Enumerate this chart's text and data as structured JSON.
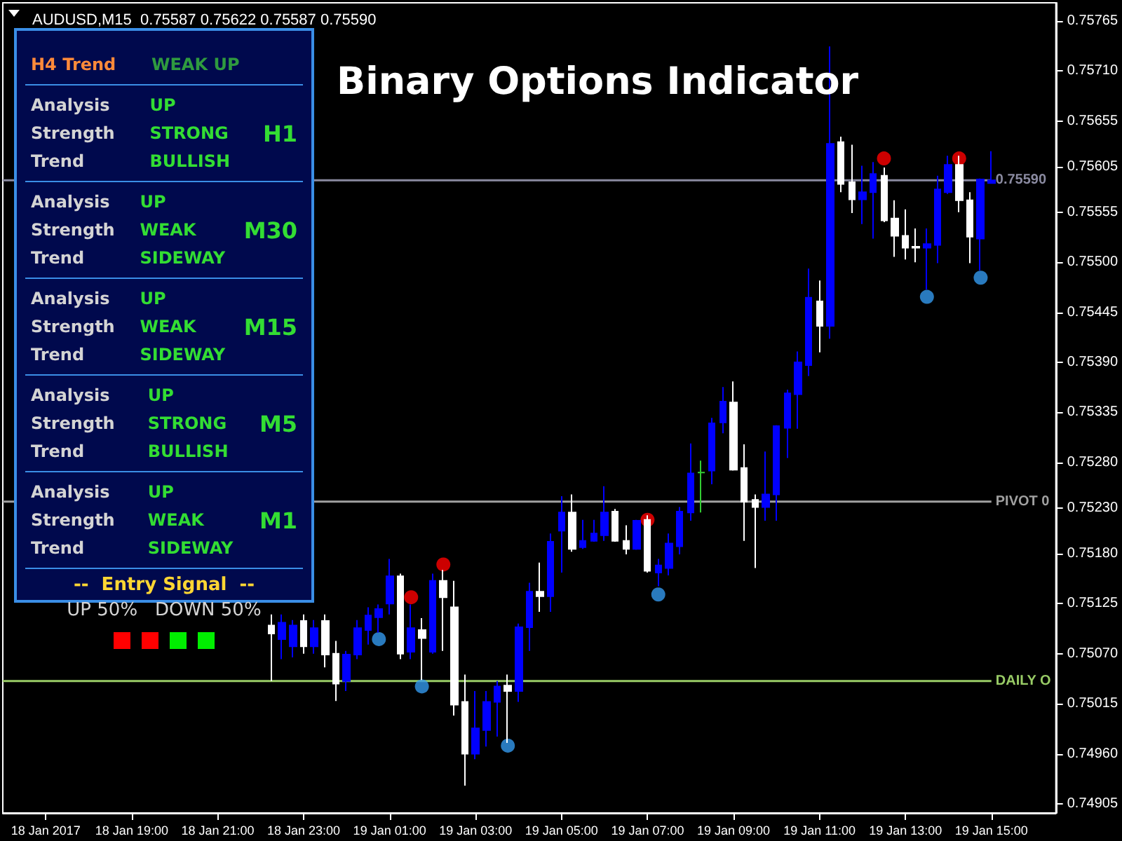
{
  "chart_data": [
    {
      "type": "candlestick",
      "title": "AUDUSD,M15  0.75587 0.75622 0.75587 0.75590",
      "annotations": [
        "Binary Options Indicator"
      ],
      "x": [
        "2017-01-18T22:15",
        "2017-01-18T22:30",
        "2017-01-18T22:45",
        "2017-01-18T23:00",
        "2017-01-18T23:15",
        "2017-01-18T23:30",
        "2017-01-18T23:45",
        "2017-01-19T00:00",
        "2017-01-19T00:15",
        "2017-01-19T00:30",
        "2017-01-19T00:45",
        "2017-01-19T01:00",
        "2017-01-19T01:15",
        "2017-01-19T01:30",
        "2017-01-19T01:45",
        "2017-01-19T02:00",
        "2017-01-19T02:15",
        "2017-01-19T02:30",
        "2017-01-19T02:45",
        "2017-01-19T03:00",
        "2017-01-19T03:15",
        "2017-01-19T03:30",
        "2017-01-19T03:45",
        "2017-01-19T04:00",
        "2017-01-19T04:15",
        "2017-01-19T04:30",
        "2017-01-19T04:45",
        "2017-01-19T05:00",
        "2017-01-19T05:15",
        "2017-01-19T05:30",
        "2017-01-19T05:45",
        "2017-01-19T06:00",
        "2017-01-19T06:15",
        "2017-01-19T06:30",
        "2017-01-19T06:45",
        "2017-01-19T07:00",
        "2017-01-19T07:15",
        "2017-01-19T07:30",
        "2017-01-19T07:45",
        "2017-01-19T08:00",
        "2017-01-19T08:15",
        "2017-01-19T08:30",
        "2017-01-19T08:45",
        "2017-01-19T09:00",
        "2017-01-19T09:15",
        "2017-01-19T09:30",
        "2017-01-19T09:45",
        "2017-01-19T10:00",
        "2017-01-19T10:15",
        "2017-01-19T10:30",
        "2017-01-19T10:45",
        "2017-01-19T11:00",
        "2017-01-19T11:15",
        "2017-01-19T11:30",
        "2017-01-19T11:45",
        "2017-01-19T12:00",
        "2017-01-19T12:15",
        "2017-01-19T12:30",
        "2017-01-19T12:45",
        "2017-01-19T13:00",
        "2017-01-19T13:15",
        "2017-01-19T13:30",
        "2017-01-19T13:45",
        "2017-01-19T14:00",
        "2017-01-19T14:15",
        "2017-01-19T14:30",
        "2017-01-19T14:45",
        "2017-01-19T15:00"
      ],
      "ohlc": [
        [
          0.75101,
          0.75113,
          0.7504,
          0.75092
        ],
        [
          0.75086,
          0.75113,
          0.75064,
          0.75104
        ],
        [
          0.75078,
          0.75107,
          0.75066,
          0.75101
        ],
        [
          0.75106,
          0.75113,
          0.7507,
          0.75078
        ],
        [
          0.75078,
          0.75107,
          0.7507,
          0.75098
        ],
        [
          0.75106,
          0.75113,
          0.75055,
          0.75069
        ],
        [
          0.7507,
          0.75084,
          0.75018,
          0.75037
        ],
        [
          0.7504,
          0.75073,
          0.75029,
          0.75069
        ],
        [
          0.75069,
          0.75107,
          0.75064,
          0.75098
        ],
        [
          0.75096,
          0.75121,
          0.7508,
          0.75112
        ],
        [
          0.7511,
          0.75124,
          0.75093,
          0.75119
        ],
        [
          0.75125,
          0.75174,
          0.75113,
          0.75155
        ],
        [
          0.75155,
          0.75158,
          0.75064,
          0.7507
        ],
        [
          0.75072,
          0.75124,
          0.75064,
          0.75098
        ],
        [
          0.75096,
          0.75109,
          0.75041,
          0.75087
        ],
        [
          0.75072,
          0.75158,
          0.7507,
          0.7515
        ],
        [
          0.7515,
          0.75162,
          0.75073,
          0.75132
        ],
        [
          0.75121,
          0.7515,
          0.75002,
          0.75014
        ],
        [
          0.75017,
          0.75047,
          0.74925,
          0.7496
        ],
        [
          0.7496,
          0.75029,
          0.74954,
          0.74988
        ],
        [
          0.74986,
          0.75029,
          0.74968,
          0.75017
        ],
        [
          0.75017,
          0.7504,
          0.74979,
          0.75034
        ],
        [
          0.75035,
          0.75047,
          0.74972,
          0.75029
        ],
        [
          0.75029,
          0.75103,
          0.75017,
          0.75099
        ],
        [
          0.75099,
          0.75148,
          0.75073,
          0.75138
        ],
        [
          0.75138,
          0.7517,
          0.75116,
          0.75133
        ],
        [
          0.75133,
          0.75202,
          0.75116,
          0.75193
        ],
        [
          0.75205,
          0.75243,
          0.75159,
          0.75225
        ],
        [
          0.75225,
          0.75245,
          0.75182,
          0.75185
        ],
        [
          0.75187,
          0.75217,
          0.75185,
          0.75194
        ],
        [
          0.75194,
          0.75217,
          0.75193,
          0.75202
        ],
        [
          0.752,
          0.75254,
          0.75194,
          0.75225
        ],
        [
          0.75226,
          0.75229,
          0.75193,
          0.75194
        ],
        [
          0.75194,
          0.75211,
          0.75179,
          0.75185
        ],
        [
          0.75185,
          0.75217,
          0.75184,
          0.75216
        ],
        [
          0.75217,
          0.75222,
          0.75159,
          0.75161
        ],
        [
          0.75159,
          0.75174,
          0.75144,
          0.75167
        ],
        [
          0.75164,
          0.75202,
          0.75156,
          0.75191
        ],
        [
          0.75188,
          0.75231,
          0.75179,
          0.75226
        ],
        [
          0.75225,
          0.75301,
          0.75216,
          0.75268
        ],
        [
          0.75269,
          0.75282,
          0.75225,
          0.75269
        ],
        [
          0.75271,
          0.75329,
          0.75256,
          0.75323
        ],
        [
          0.75324,
          0.75363,
          0.75312,
          0.75347
        ],
        [
          0.75346,
          0.75369,
          0.75271,
          0.75272
        ],
        [
          0.75274,
          0.753,
          0.75194,
          0.75237
        ],
        [
          0.75239,
          0.75245,
          0.75164,
          0.75231
        ],
        [
          0.75231,
          0.75292,
          0.75216,
          0.75245
        ],
        [
          0.75245,
          0.75321,
          0.75216,
          0.7532
        ],
        [
          0.75318,
          0.7536,
          0.75285,
          0.75356
        ],
        [
          0.75355,
          0.75402,
          0.75317,
          0.7539
        ],
        [
          0.75387,
          0.75493,
          0.75375,
          0.75461
        ],
        [
          0.75457,
          0.7548,
          0.75401,
          0.7543
        ],
        [
          0.7543,
          0.75737,
          0.75416,
          0.7563
        ],
        [
          0.75632,
          0.75638,
          0.75577,
          0.75586
        ],
        [
          0.75588,
          0.75629,
          0.75554,
          0.75569
        ],
        [
          0.75569,
          0.75606,
          0.75542,
          0.75577
        ],
        [
          0.75577,
          0.7561,
          0.75526,
          0.75597
        ],
        [
          0.75595,
          0.75604,
          0.75544,
          0.75546
        ],
        [
          0.75548,
          0.75568,
          0.75506,
          0.75529
        ],
        [
          0.75529,
          0.75558,
          0.75503,
          0.75516
        ],
        [
          0.75517,
          0.75537,
          0.755,
          0.75516
        ],
        [
          0.75516,
          0.75537,
          0.7547,
          0.7552
        ],
        [
          0.75519,
          0.75595,
          0.75499,
          0.7558
        ],
        [
          0.75577,
          0.75617,
          0.75575,
          0.75607
        ],
        [
          0.75607,
          0.75617,
          0.75555,
          0.75568
        ],
        [
          0.75568,
          0.75577,
          0.75499,
          0.75528
        ],
        [
          0.75526,
          0.75592,
          0.75491,
          0.75591
        ],
        [
          0.75587,
          0.75622,
          0.75587,
          0.7559
        ]
      ],
      "colors": [
        "#ffffff",
        "#0000ff",
        "#0000ff",
        "#ffffff",
        "#0000ff",
        "#ffffff",
        "#ffffff",
        "#0000ff",
        "#0000ff",
        "#0000ff",
        "#0000ff",
        "#0000ff",
        "#ffffff",
        "#0000ff",
        "#ffffff",
        "#0000ff",
        "#ffffff",
        "#ffffff",
        "#ffffff",
        "#0000ff",
        "#0000ff",
        "#0000ff",
        "#ffffff",
        "#0000ff",
        "#0000ff",
        "#ffffff",
        "#0000ff",
        "#0000ff",
        "#ffffff",
        "#0000ff",
        "#0000ff",
        "#0000ff",
        "#ffffff",
        "#ffffff",
        "#0000ff",
        "#ffffff",
        "#0000ff",
        "#0000ff",
        "#0000ff",
        "#0000ff",
        "#33cc33",
        "#0000ff",
        "#0000ff",
        "#ffffff",
        "#ffffff",
        "#ffffff",
        "#0000ff",
        "#0000ff",
        "#0000ff",
        "#0000ff",
        "#0000ff",
        "#ffffff",
        "#0000ff",
        "#ffffff",
        "#ffffff",
        "#0000ff",
        "#0000ff",
        "#ffffff",
        "#ffffff",
        "#ffffff",
        "#ffffff",
        "#0000ff",
        "#0000ff",
        "#0000ff",
        "#ffffff",
        "#ffffff",
        "#0000ff",
        "#0000ff"
      ],
      "series": [
        {
          "type": "scatter",
          "color": "#ff0000",
          "x": [
            "2017-01-19T01:30",
            "2017-01-19T02:15",
            "2017-01-19T07:00",
            "2017-01-19T12:30",
            "2017-01-19T14:15"
          ],
          "values": [
            0.75132,
            0.75168,
            0.75217,
            0.75614,
            0.75614
          ]
        },
        {
          "type": "scatter",
          "color": "#3399ee",
          "x": [
            "2017-01-19T00:45",
            "2017-01-19T01:45",
            "2017-01-19T03:45",
            "2017-01-19T07:15",
            "2017-01-19T13:30",
            "2017-01-19T14:45"
          ],
          "values": [
            0.75086,
            0.75034,
            0.74969,
            0.75135,
            0.75462,
            0.75483
          ]
        }
      ],
      "marker": "circle",
      "ref_lines": [
        {
          "axis": "y",
          "value": 0.75237,
          "label": "PIVOT 0",
          "color": "#a0a0a0"
        },
        {
          "axis": "y",
          "value": 0.7504,
          "label": "DAILY O",
          "color": "#99cc66"
        },
        {
          "axis": "y",
          "value": 0.7559,
          "label": "0.75590",
          "color": "#8a8aa0"
        }
      ],
      "xlim": [
        "2017-01-18T16:00",
        "2017-01-19T16:30"
      ],
      "xticks": [
        {
          "value": "2017-01-18T17:00",
          "label": "18 Jan 2017"
        },
        {
          "value": "2017-01-18T19:00",
          "label": "18 Jan 19:00"
        },
        {
          "value": "2017-01-18T21:00",
          "label": "18 Jan 21:00"
        },
        {
          "value": "2017-01-18T23:00",
          "label": "18 Jan 23:00"
        },
        {
          "value": "2017-01-19T01:00",
          "label": "19 Jan 01:00"
        },
        {
          "value": "2017-01-19T03:00",
          "label": "19 Jan 03:00"
        },
        {
          "value": "2017-01-19T05:00",
          "label": "19 Jan 05:00"
        },
        {
          "value": "2017-01-19T07:00",
          "label": "19 Jan 07:00"
        },
        {
          "value": "2017-01-19T09:00",
          "label": "19 Jan 09:00"
        },
        {
          "value": "2017-01-19T11:00",
          "label": "19 Jan 11:00"
        },
        {
          "value": "2017-01-19T13:00",
          "label": "19 Jan 13:00"
        },
        {
          "value": "2017-01-19T15:00",
          "label": "19 Jan 15:00"
        }
      ],
      "ylim": [
        0.74895,
        0.75785
      ],
      "yticks": [
        0.75765,
        {
          "value": 0.7571,
          "label": "0.75710"
        },
        0.75655,
        0.75605,
        0.75555,
        {
          "value": 0.755,
          "label": "0.75500"
        },
        0.75445,
        {
          "value": 0.7539,
          "label": "0.75390"
        },
        0.75335,
        {
          "value": 0.7528,
          "label": "0.75280"
        },
        {
          "value": 0.7523,
          "label": "0.75230"
        },
        {
          "value": 0.7518,
          "label": "0.75180"
        },
        0.75125,
        {
          "value": 0.7507,
          "label": "0.75070"
        },
        0.75015,
        {
          "value": 0.7496,
          "label": "0.74960"
        },
        0.74905
      ]
    },
    {
      "type": "other",
      "annotations": [
        "H4 Trend",
        "WEAK UP",
        "Analysis",
        "UP",
        "Strength",
        "STRONG",
        "Trend",
        "BULLISH",
        "H1",
        "Analysis",
        "UP",
        "Strength",
        "WEAK",
        "Trend",
        "SIDEWAY",
        "M30",
        "Analysis",
        "UP",
        "Strength",
        "WEAK",
        "Trend",
        "SIDEWAY",
        "M15",
        "Analysis",
        "UP",
        "Strength",
        "STRONG",
        "Trend",
        "BULLISH",
        "M5",
        "Analysis",
        "UP",
        "Strength",
        "WEAK",
        "Trend",
        "SIDEWAY",
        "M1",
        "--  Entry Signal  --",
        "UP 50%   DOWN 50%"
      ]
    }
  ]
}
